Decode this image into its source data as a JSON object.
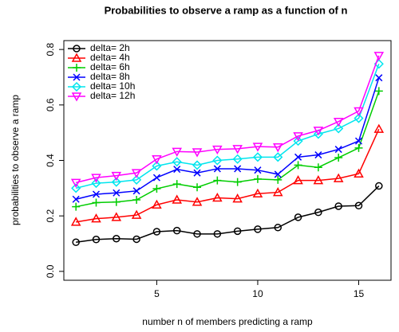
{
  "chart_data": {
    "type": "line",
    "title": "Probabilities to observe a ramp as a function of n",
    "x_label": "number n of members predicting a ramp",
    "y_label": "probabilities to observe a ramp",
    "x": [
      1,
      2,
      3,
      4,
      5,
      6,
      7,
      8,
      9,
      10,
      11,
      12,
      13,
      14,
      15,
      16
    ],
    "series": [
      {
        "name": "delta= 2h",
        "color": "#000000",
        "marker": "circle",
        "values": [
          0.105,
          0.115,
          0.118,
          0.116,
          0.143,
          0.147,
          0.135,
          0.135,
          0.145,
          0.152,
          0.158,
          0.195,
          0.213,
          0.235,
          0.237,
          0.308
        ]
      },
      {
        "name": "delta= 4h",
        "color": "#ff0000",
        "marker": "triangle-up",
        "values": [
          0.178,
          0.19,
          0.195,
          0.203,
          0.24,
          0.258,
          0.25,
          0.265,
          0.262,
          0.28,
          0.285,
          0.328,
          0.328,
          0.335,
          0.352,
          0.513
        ]
      },
      {
        "name": "delta= 6h",
        "color": "#00cd00",
        "marker": "plus",
        "values": [
          0.233,
          0.248,
          0.25,
          0.258,
          0.298,
          0.315,
          0.303,
          0.328,
          0.322,
          0.333,
          0.33,
          0.383,
          0.375,
          0.41,
          0.445,
          0.65
        ]
      },
      {
        "name": "delta= 8h",
        "color": "#0000ff",
        "marker": "cross",
        "values": [
          0.26,
          0.278,
          0.283,
          0.29,
          0.338,
          0.368,
          0.355,
          0.37,
          0.37,
          0.365,
          0.35,
          0.412,
          0.42,
          0.44,
          0.47,
          0.698
        ]
      },
      {
        "name": "delta= 10h",
        "color": "#00e5ee",
        "marker": "diamond",
        "values": [
          0.3,
          0.318,
          0.322,
          0.33,
          0.38,
          0.395,
          0.383,
          0.4,
          0.405,
          0.412,
          0.412,
          0.47,
          0.495,
          0.515,
          0.552,
          0.748
        ]
      },
      {
        "name": "delta= 12h",
        "color": "#ff00ff",
        "marker": "triangle-down",
        "values": [
          0.32,
          0.338,
          0.345,
          0.355,
          0.405,
          0.432,
          0.43,
          0.44,
          0.442,
          0.45,
          0.448,
          0.488,
          0.508,
          0.54,
          0.578,
          0.778
        ]
      }
    ],
    "xlim": [
      0.4,
      16.6
    ],
    "xticks": [
      5,
      10,
      15
    ],
    "ylim": [
      -0.032,
      0.832
    ],
    "yticks": [
      {
        "value": 0,
        "label": "0.0"
      },
      0.2,
      0.4,
      0.6,
      0.8
    ],
    "legend": "top-left"
  }
}
